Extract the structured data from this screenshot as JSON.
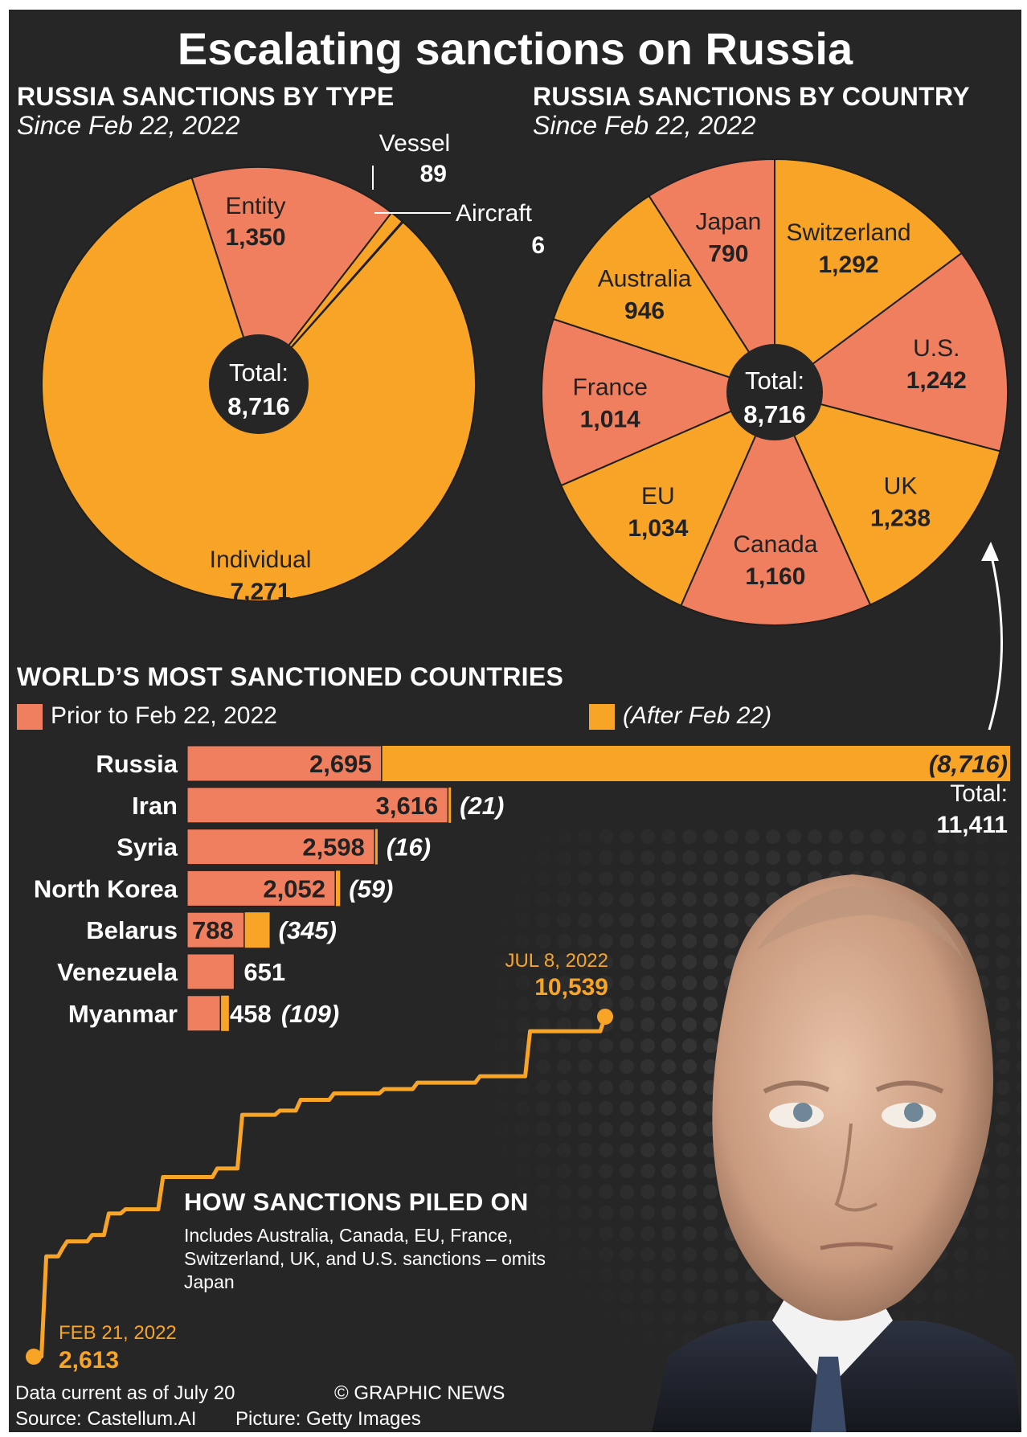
{
  "title": "Escalating sanctions on Russia",
  "colors": {
    "background": "#262626",
    "orange": "#f7a427",
    "salmon": "#ef7f5f",
    "line": "#f7a427"
  },
  "by_type": {
    "heading": "RUSSIA SANCTIONS BY TYPE",
    "subheading": "Since Feb 22, 2022",
    "total_label": "Total:",
    "total_value": "8,716"
  },
  "by_country": {
    "heading": "RUSSIA SANCTIONS BY COUNTRY",
    "subheading": "Since Feb 22, 2022",
    "total_label": "Total:",
    "total_value": "8,716"
  },
  "most_sanctioned": {
    "heading": "WORLD’S MOST SANCTIONED COUNTRIES",
    "legend_prior": "Prior to Feb 22, 2022",
    "legend_after": "(After Feb 22)",
    "total_label": "Total:",
    "total_value": "11,411"
  },
  "piled_on": {
    "heading": "HOW SANCTIONS PILED ON",
    "note": "Includes Australia, Canada, EU, France, Switzerland, UK, and U.S. sanctions – omits Japan",
    "start_date": "FEB 21, 2022",
    "start_value": "2,613",
    "end_date": "JUL 8, 2022",
    "end_value": "10,539"
  },
  "footer": {
    "data_current": "Data current as of July 20",
    "credit": "© GRAPHIC NEWS",
    "source": "Source: Castellum.AI",
    "picture": "Picture: Getty Images"
  },
  "chart_data": [
    {
      "type": "pie",
      "title": "RUSSIA SANCTIONS BY TYPE",
      "subtitle": "Since Feb 22, 2022",
      "categories": [
        "Entity",
        "Vessel",
        "Aircraft",
        "Individual"
      ],
      "values": [
        1350,
        89,
        6,
        7271
      ],
      "labels": [
        "1,350",
        "89",
        "6",
        "7,271"
      ],
      "colors": [
        "#ef7f5f",
        "#f7a427",
        "#ef7f5f",
        "#f7a427"
      ],
      "total": 8716
    },
    {
      "type": "pie",
      "title": "RUSSIA SANCTIONS BY COUNTRY",
      "subtitle": "Since Feb 22, 2022",
      "categories": [
        "Switzerland",
        "U.S.",
        "UK",
        "Canada",
        "EU",
        "France",
        "Australia",
        "Japan"
      ],
      "values": [
        1292,
        1242,
        1238,
        1160,
        1034,
        1014,
        946,
        790
      ],
      "labels": [
        "1,292",
        "1,242",
        "1,238",
        "1,160",
        "1,034",
        "1,014",
        "946",
        "790"
      ],
      "colors": [
        "#f7a427",
        "#ef7f5f",
        "#f7a427",
        "#ef7f5f",
        "#f7a427",
        "#ef7f5f",
        "#f7a427",
        "#ef7f5f"
      ],
      "total": 8716
    },
    {
      "type": "bar",
      "orientation": "horizontal",
      "stacked": true,
      "title": "WORLD’S MOST SANCTIONED COUNTRIES",
      "categories": [
        "Russia",
        "Iran",
        "Syria",
        "North Korea",
        "Belarus",
        "Venezuela",
        "Myanmar"
      ],
      "series": [
        {
          "name": "Prior to Feb 22, 2022",
          "values": [
            2695,
            3616,
            2598,
            2052,
            788,
            651,
            458
          ],
          "labels": [
            "2,695",
            "3,616",
            "2,598",
            "2,052",
            "788",
            "651",
            "458"
          ]
        },
        {
          "name": "(After Feb 22)",
          "values": [
            8716,
            21,
            16,
            59,
            345,
            0,
            109
          ],
          "labels": [
            "(8,716)",
            "(21)",
            "(16)",
            "(59)",
            "(345)",
            "",
            "(109)"
          ]
        }
      ],
      "total_russia": 11411
    },
    {
      "type": "line",
      "title": "HOW SANCTIONS PILED ON",
      "x": [
        "2022-02-21",
        "2022-02-24",
        "2022-02-28",
        "2022-03-01",
        "2022-03-07",
        "2022-03-11",
        "2022-03-15",
        "2022-03-24",
        "2022-04-06",
        "2022-04-12",
        "2022-04-21",
        "2022-04-26",
        "2022-05-04",
        "2022-05-16",
        "2022-05-24",
        "2022-06-08",
        "2022-06-20",
        "2022-07-08"
      ],
      "y": [
        2613,
        4950,
        5150,
        5300,
        5450,
        5950,
        6050,
        6800,
        7000,
        8250,
        8350,
        8600,
        8750,
        8850,
        9000,
        9150,
        10200,
        10539
      ],
      "annotations": [
        {
          "x": "2022-02-21",
          "y": 2613,
          "label": "FEB 21, 2022 2,613"
        },
        {
          "x": "2022-07-08",
          "y": 10539,
          "label": "JUL 8, 2022 10,539"
        }
      ]
    }
  ]
}
